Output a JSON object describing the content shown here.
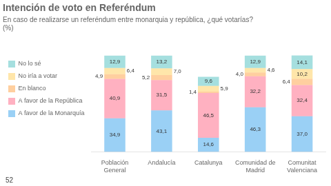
{
  "chart_data": {
    "type": "bar",
    "title": "Intención de voto en Referéndum",
    "subtitle": "En caso de realizarse un referéndum entre monarquia y república, ¿qué votarías?",
    "subtitle2": "(%)",
    "footer": "52",
    "categories": [
      "Población General",
      "Andalucía",
      "Catalunya",
      "Comunidad de Madrid",
      "Comunitat Valenciana"
    ],
    "series": [
      {
        "name": "A favor de la Monarquía",
        "values": [
          34.9,
          43.1,
          14.6,
          46.3,
          37.0
        ],
        "value_labels": [
          "34,9",
          "43,1",
          "14,6",
          "46,3",
          "37,0"
        ]
      },
      {
        "name": "A favor de la República",
        "values": [
          40.9,
          31.5,
          46.5,
          32.2,
          32.4
        ],
        "value_labels": [
          "40,9",
          "31,5",
          "46,5",
          "32,2",
          "32,4"
        ]
      },
      {
        "name": "En blanco",
        "values": [
          4.9,
          5.2,
          1.4,
          4.0,
          6.4
        ],
        "value_labels": [
          "4,9",
          "5,2",
          "1,4",
          "4,0",
          "6,4"
        ]
      },
      {
        "name": "No iría a votar",
        "values": [
          6.4,
          7.0,
          5.9,
          4.6,
          10.2
        ],
        "value_labels": [
          "6,4",
          "7,0",
          "5,9",
          "4,6",
          "10,2"
        ]
      },
      {
        "name": "No lo sé",
        "values": [
          12.9,
          13.2,
          9.6,
          12.9,
          14.1
        ],
        "value_labels": [
          "12,9",
          "13,2",
          "9,6",
          "12,9",
          "14,1"
        ]
      }
    ],
    "stacked": true,
    "data_labels": true,
    "ylim": [
      0,
      120
    ],
    "legend": "left",
    "tick_labels": "x",
    "grid": false
  }
}
